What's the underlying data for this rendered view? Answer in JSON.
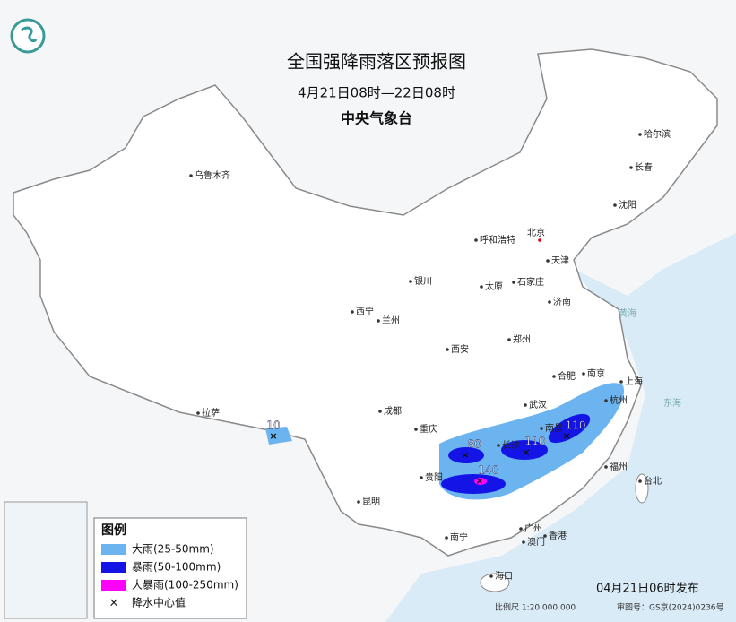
{
  "header": {
    "title": "全国强降雨落区预报图",
    "subtitle": "4月21日08时—22日08时",
    "issuer": "中央气象台"
  },
  "cities": [
    "乌鲁木齐",
    "哈尔滨",
    "长春",
    "沈阳",
    "北京",
    "天津",
    "呼和浩特",
    "银川",
    "太原",
    "石家庄",
    "济南",
    "西宁",
    "兰州",
    "郑州",
    "西安",
    "合肥",
    "南京",
    "上海",
    "武汉",
    "杭州",
    "成都",
    "重庆",
    "拉萨",
    "南昌",
    "长沙",
    "福州",
    "台北",
    "贵阳",
    "昆明",
    "南宁",
    "广州",
    "澳门",
    "香港",
    "海口"
  ],
  "seas": [
    "黄海",
    "东海"
  ],
  "rain_centers": [
    10,
    80,
    110,
    110,
    140
  ],
  "legend": {
    "title": "图例",
    "items": [
      {
        "label": "大雨(25-50mm)",
        "color": "#6cb4f0"
      },
      {
        "label": "暴雨(50-100mm)",
        "color": "#1414e6"
      },
      {
        "label": "大暴雨(100-250mm)",
        "color": "#ff00ff"
      },
      {
        "label": "降水中心值"
      }
    ]
  },
  "footer": {
    "release": "04月21日06时发布",
    "scale": "比例尺 1:20 000 000",
    "review": "审图号：GS京(2024)0236号"
  }
}
